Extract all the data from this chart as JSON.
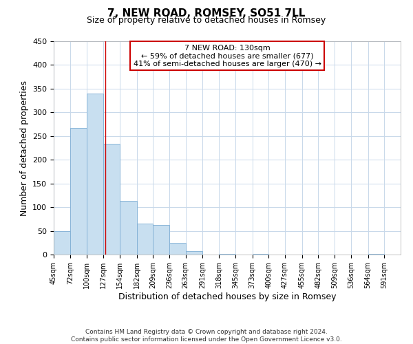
{
  "title": "7, NEW ROAD, ROMSEY, SO51 7LL",
  "subtitle": "Size of property relative to detached houses in Romsey",
  "xlabel": "Distribution of detached houses by size in Romsey",
  "ylabel": "Number of detached properties",
  "footer_line1": "Contains HM Land Registry data © Crown copyright and database right 2024.",
  "footer_line2": "Contains public sector information licensed under the Open Government Licence v3.0.",
  "bar_edges": [
    45,
    72,
    100,
    127,
    154,
    182,
    209,
    236,
    263,
    291,
    318,
    345,
    373,
    400,
    427,
    455,
    482,
    509,
    536,
    564,
    591
  ],
  "bar_heights": [
    50,
    267,
    340,
    233,
    113,
    65,
    62,
    25,
    7,
    0,
    2,
    0,
    1,
    0,
    0,
    0,
    0,
    0,
    0,
    2
  ],
  "bar_color": "#c8dff0",
  "bar_edge_color": "#7eaed4",
  "background_color": "#ffffff",
  "grid_color": "#c8d8ea",
  "annotation_box_text_line1": "7 NEW ROAD: 130sqm",
  "annotation_box_text_line2": "← 59% of detached houses are smaller (677)",
  "annotation_box_text_line3": "41% of semi-detached houses are larger (470) →",
  "annotation_box_color": "#ffffff",
  "annotation_box_edge_color": "#cc0000",
  "property_line_x": 130,
  "property_line_color": "#cc0000",
  "xlim": [
    45,
    618
  ],
  "ylim": [
    0,
    450
  ],
  "yticks": [
    0,
    50,
    100,
    150,
    200,
    250,
    300,
    350,
    400,
    450
  ],
  "xtick_labels": [
    "45sqm",
    "72sqm",
    "100sqm",
    "127sqm",
    "154sqm",
    "182sqm",
    "209sqm",
    "236sqm",
    "263sqm",
    "291sqm",
    "318sqm",
    "345sqm",
    "373sqm",
    "400sqm",
    "427sqm",
    "455sqm",
    "482sqm",
    "509sqm",
    "536sqm",
    "564sqm",
    "591sqm"
  ],
  "xtick_positions": [
    45,
    72,
    100,
    127,
    154,
    182,
    209,
    236,
    263,
    291,
    318,
    345,
    373,
    400,
    427,
    455,
    482,
    509,
    536,
    564,
    591
  ],
  "title_fontsize": 11,
  "subtitle_fontsize": 9,
  "xlabel_fontsize": 9,
  "ylabel_fontsize": 9,
  "annotation_fontsize": 8,
  "xtick_fontsize": 7,
  "ytick_fontsize": 8,
  "footer_fontsize": 6.5
}
